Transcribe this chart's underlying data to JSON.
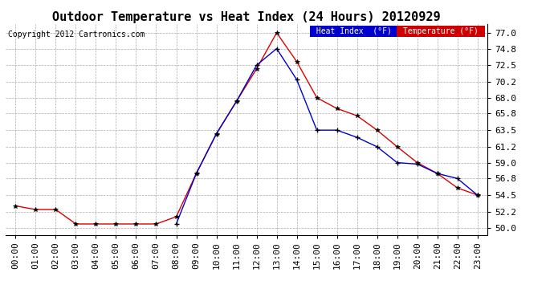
{
  "title": "Outdoor Temperature vs Heat Index (24 Hours) 20120929",
  "copyright": "Copyright 2012 Cartronics.com",
  "hours": [
    "00:00",
    "01:00",
    "02:00",
    "03:00",
    "04:00",
    "05:00",
    "06:00",
    "07:00",
    "08:00",
    "09:00",
    "10:00",
    "11:00",
    "12:00",
    "13:00",
    "14:00",
    "15:00",
    "16:00",
    "17:00",
    "18:00",
    "19:00",
    "20:00",
    "21:00",
    "22:00",
    "23:00"
  ],
  "temperature": [
    53.0,
    52.5,
    52.5,
    50.5,
    50.5,
    50.5,
    50.5,
    50.5,
    51.5,
    57.5,
    63.0,
    67.5,
    72.0,
    77.0,
    73.0,
    68.0,
    66.5,
    65.5,
    63.5,
    61.2,
    59.0,
    57.5,
    55.5,
    54.5
  ],
  "heat_index": [
    null,
    null,
    null,
    null,
    null,
    null,
    null,
    null,
    50.5,
    57.5,
    63.0,
    67.5,
    72.5,
    74.8,
    70.5,
    63.5,
    63.5,
    62.5,
    61.2,
    59.0,
    58.8,
    57.5,
    56.8,
    54.5
  ],
  "ylim": [
    49.0,
    78.2
  ],
  "yticks": [
    50.0,
    52.2,
    54.5,
    56.8,
    59.0,
    61.2,
    63.5,
    65.8,
    68.0,
    70.2,
    72.5,
    74.8,
    77.0
  ],
  "temp_color": "#dd0000",
  "heat_color": "#0000cc",
  "bg_color": "#ffffff",
  "grid_color": "#aaaaaa",
  "legend_heat_bg": "#0000cc",
  "legend_temp_bg": "#cc0000",
  "title_fontsize": 11,
  "copyright_fontsize": 7,
  "tick_fontsize": 8
}
